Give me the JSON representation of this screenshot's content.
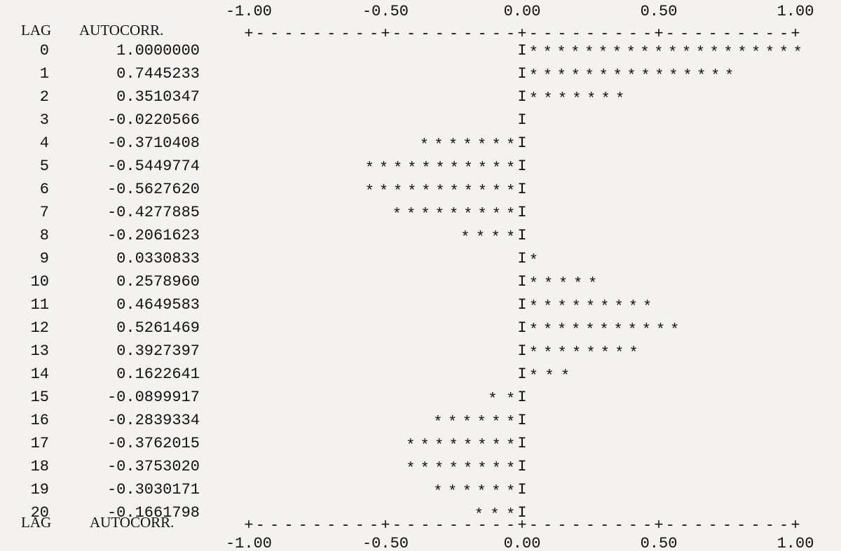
{
  "chart_data": {
    "type": "bar",
    "category_header": "LAG",
    "value_header": "AUTOCORR.",
    "categories": [
      0,
      1,
      2,
      3,
      4,
      5,
      6,
      7,
      8,
      9,
      10,
      11,
      12,
      13,
      14,
      15,
      16,
      17,
      18,
      19,
      20
    ],
    "values": [
      1.0,
      0.7445233,
      0.3510347,
      -0.0220566,
      -0.3710408,
      -0.5449774,
      -0.562762,
      -0.4277885,
      -0.2061623,
      0.0330833,
      0.257896,
      0.4649583,
      0.5261469,
      0.3927397,
      0.1622641,
      -0.0899917,
      -0.2839334,
      -0.3762015,
      -0.375302,
      -0.3030171,
      -0.1661798
    ],
    "value_labels": [
      "1.0000000",
      "0.7445233",
      "0.3510347",
      "-0.0220566",
      "-0.3710408",
      "-0.5449774",
      "-0.5627620",
      "-0.4277885",
      "-0.2061623",
      "0.0330833",
      "0.2578960",
      "0.4649583",
      "0.5261469",
      "0.3927397",
      "0.1622641",
      "-0.0899917",
      "-0.2839334",
      "-0.3762015",
      "-0.3753020",
      "-0.3030171",
      "-0.1661798"
    ],
    "xlim": [
      -1,
      1
    ],
    "xticks": [
      {
        "value": -1,
        "label": "-1.00"
      },
      {
        "value": -0.5,
        "label": "-0.50"
      },
      {
        "value": 0,
        "label": "0.00"
      },
      {
        "value": 0.5,
        "label": "0.50"
      },
      {
        "value": 1,
        "label": "1.00"
      }
    ],
    "color": "#111111"
  }
}
